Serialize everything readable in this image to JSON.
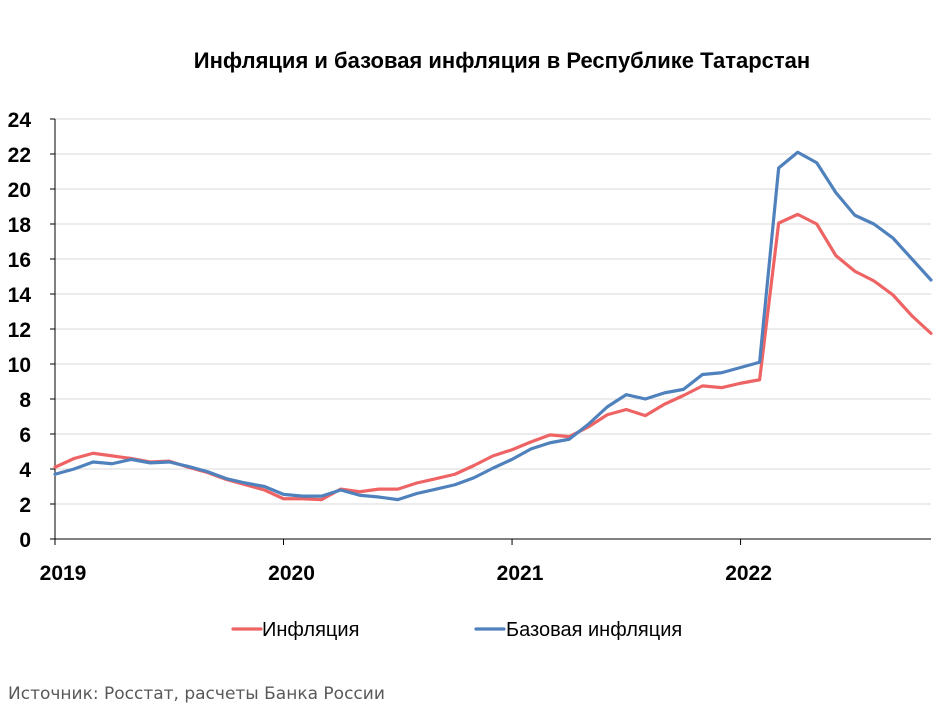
{
  "chart_data": {
    "type": "line",
    "title": "Инфляция и базовая инфляция в Республике Татарстан",
    "xlabel": "",
    "ylabel": "",
    "ylim": [
      0,
      24
    ],
    "y_ticks": [
      "0",
      "2",
      "4",
      "6",
      "8",
      "10",
      "12",
      "14",
      "16",
      "18",
      "20",
      "22",
      "24"
    ],
    "x_ticks": [
      "2019",
      "2020",
      "2021",
      "2022"
    ],
    "x_start": "2019-01",
    "x_end": "2022-11",
    "grid": true,
    "legend_position": "bottom",
    "x": [
      "2019-01",
      "2019-02",
      "2019-03",
      "2019-04",
      "2019-05",
      "2019-06",
      "2019-07",
      "2019-08",
      "2019-09",
      "2019-10",
      "2019-11",
      "2019-12",
      "2020-01",
      "2020-02",
      "2020-03",
      "2020-04",
      "2020-05",
      "2020-06",
      "2020-07",
      "2020-08",
      "2020-09",
      "2020-10",
      "2020-11",
      "2020-12",
      "2021-01",
      "2021-02",
      "2021-03",
      "2021-04",
      "2021-05",
      "2021-06",
      "2021-07",
      "2021-08",
      "2021-09",
      "2021-10",
      "2021-11",
      "2021-12",
      "2022-01",
      "2022-02",
      "2022-03",
      "2022-04",
      "2022-05",
      "2022-06",
      "2022-07",
      "2022-08",
      "2022-09",
      "2022-10",
      "2022-11"
    ],
    "series": [
      {
        "name": "Инфляция",
        "color": "#ee6464",
        "values": [
          4.1,
          4.6,
          4.9,
          4.75,
          4.6,
          4.4,
          4.45,
          4.1,
          3.8,
          3.4,
          3.1,
          2.8,
          2.3,
          2.3,
          2.25,
          2.85,
          2.7,
          2.85,
          2.85,
          3.2,
          3.45,
          3.7,
          4.2,
          4.75,
          5.1,
          5.55,
          5.95,
          5.85,
          6.4,
          7.1,
          7.4,
          7.05,
          7.7,
          8.2,
          8.75,
          8.65,
          8.9,
          9.1,
          18.05,
          18.55,
          18.0,
          16.2,
          15.3,
          14.75,
          13.95,
          12.75,
          11.75
        ]
      },
      {
        "name": "Базовая инфляция",
        "color": "#4f81bd",
        "values": [
          3.7,
          4.0,
          4.4,
          4.3,
          4.55,
          4.35,
          4.4,
          4.15,
          3.85,
          3.45,
          3.2,
          3.0,
          2.55,
          2.45,
          2.45,
          2.8,
          2.5,
          2.4,
          2.25,
          2.6,
          2.85,
          3.1,
          3.5,
          4.05,
          4.55,
          5.15,
          5.5,
          5.7,
          6.55,
          7.55,
          8.25,
          8.0,
          8.35,
          8.55,
          9.4,
          9.5,
          9.8,
          10.1,
          21.2,
          22.1,
          21.5,
          19.8,
          18.5,
          18.0,
          17.2,
          16.0,
          14.8
        ]
      }
    ]
  },
  "source_text": "Источник: Росстат, расчеты Банка России"
}
